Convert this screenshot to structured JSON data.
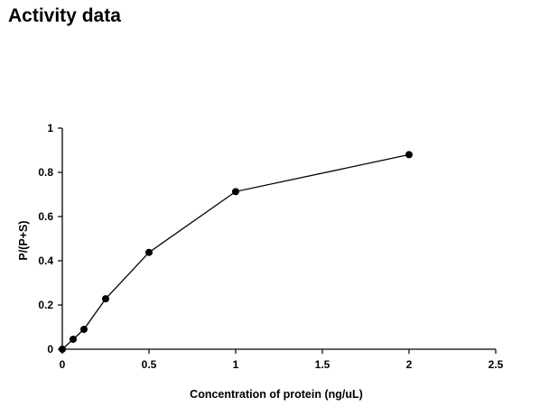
{
  "page": {
    "title": "Activity data"
  },
  "chart_data": {
    "type": "line",
    "title": "",
    "xlabel": "Concentration of protein (ng/uL)",
    "ylabel": "P/(P+S)",
    "xlim": [
      0,
      2.5
    ],
    "ylim": [
      0,
      1
    ],
    "x_ticks": [
      0,
      0.5,
      1,
      1.5,
      2,
      2.5
    ],
    "y_ticks": [
      0,
      0.2,
      0.4,
      0.6,
      0.8,
      1
    ],
    "x_tick_labels": [
      "0",
      "0.5",
      "1",
      "1.5",
      "2",
      "2.5"
    ],
    "y_tick_labels": [
      "0",
      "0.2",
      "0.4",
      "0.6",
      "0.8",
      "1"
    ],
    "grid": false,
    "legend": "none",
    "series": [
      {
        "x": [
          0,
          0.0625,
          0.125,
          0.25,
          0.5,
          1,
          2
        ],
        "y": [
          0,
          0.045,
          0.09,
          0.228,
          0.438,
          0.713,
          0.88
        ],
        "color": "#000000",
        "marker": "circle"
      }
    ]
  }
}
